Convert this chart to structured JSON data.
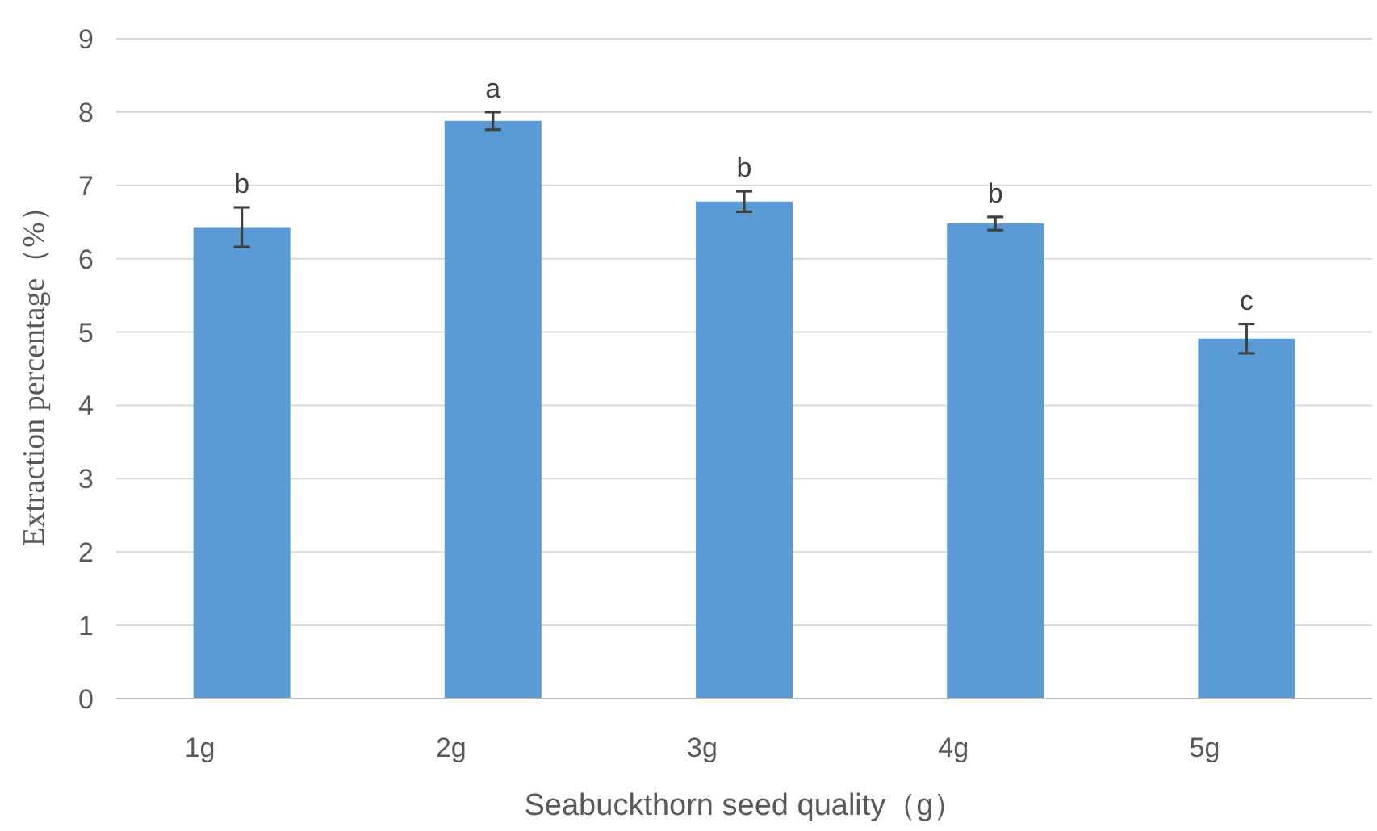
{
  "chart_data": {
    "type": "bar",
    "xlabel": "Seabuckthorn seed quality（g）",
    "ylabel": "Extraction percentage（%）",
    "categories": [
      "1g",
      "2g",
      "3g",
      "4g",
      "5g"
    ],
    "values": [
      6.43,
      7.88,
      6.78,
      6.48,
      4.91
    ],
    "errors": [
      0.27,
      0.12,
      0.14,
      0.09,
      0.2
    ],
    "color": "#5b9bd5",
    "ylim": [
      0,
      9
    ],
    "yticks": [
      0,
      1,
      2,
      3,
      4,
      5,
      6,
      7,
      8,
      9
    ],
    "grid": "y",
    "annotations": [
      "b",
      "a",
      "b",
      "b",
      "c"
    ]
  }
}
